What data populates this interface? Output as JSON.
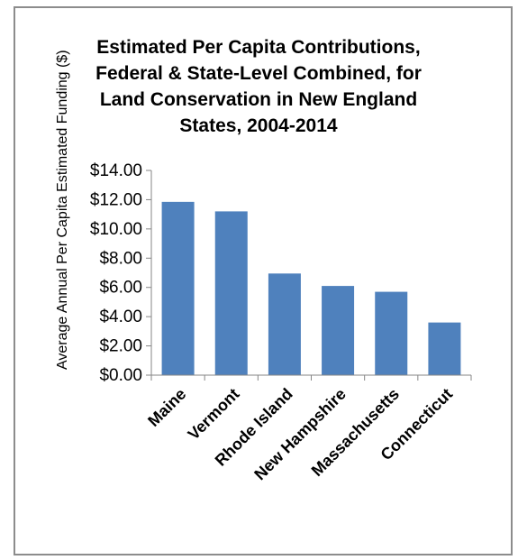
{
  "chart_data": {
    "type": "bar",
    "title_lines": [
      "Estimated Per Capita Contributions,",
      "Federal & State-Level Combined, for",
      "Land Conservation in New England",
      "States, 2004-2014"
    ],
    "ylabel": "Average Annual Per Capita Estimated Funding ($)",
    "xlabel": "",
    "categories": [
      "Maine",
      "Vermont",
      "Rhode Island",
      "New Hampshire",
      "Massachusetts",
      "Connecticut"
    ],
    "values": [
      11.85,
      11.2,
      6.95,
      6.1,
      5.7,
      3.6
    ],
    "ylim": [
      0,
      14
    ],
    "yticks": [
      "$0.00",
      "$2.00",
      "$4.00",
      "$6.00",
      "$8.00",
      "$10.00",
      "$12.00",
      "$14.00"
    ],
    "bar_color": "#4f81bd",
    "grid": false,
    "legend": "none"
  }
}
